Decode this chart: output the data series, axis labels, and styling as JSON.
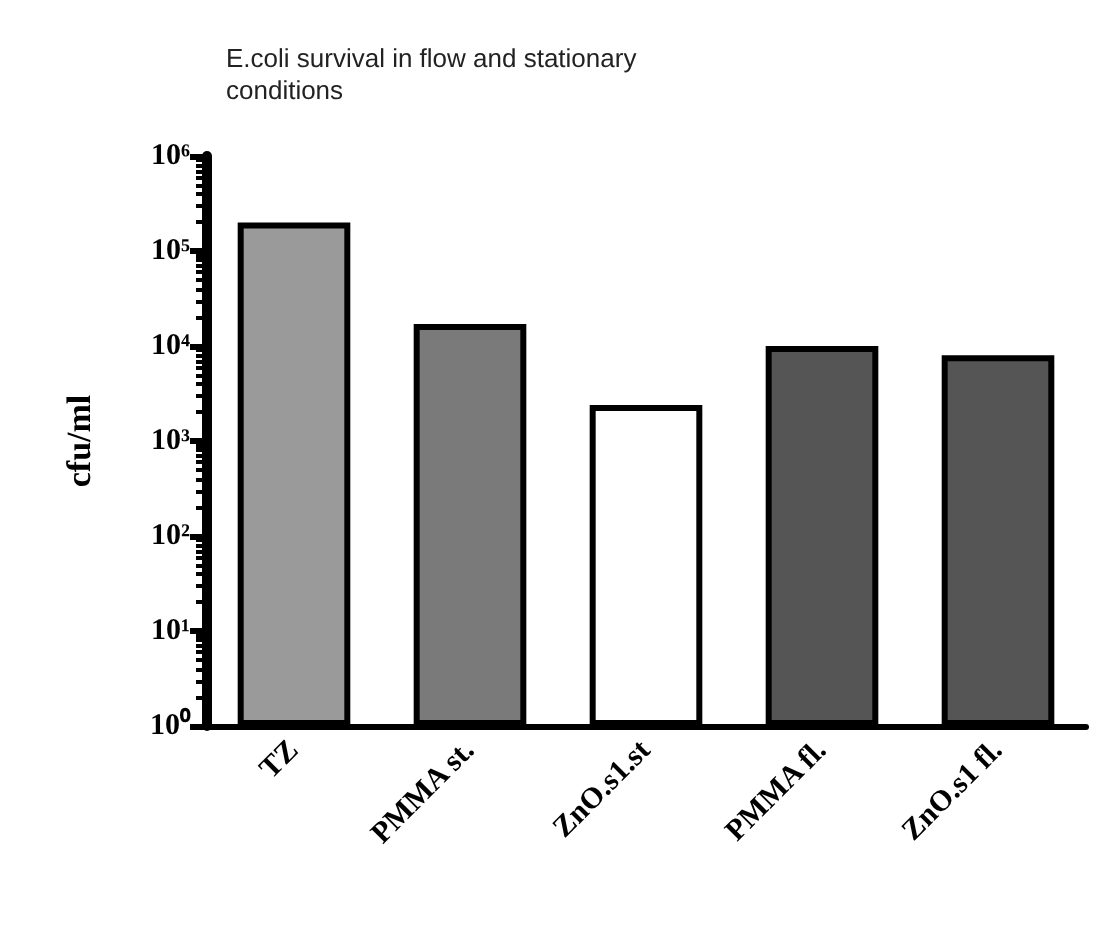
{
  "chart_data": {
    "type": "bar",
    "title": "E.coli survival in flow and stationary\nconditions",
    "ylabel": "cfu/ml",
    "categories": [
      "TZ",
      "PMMA st.",
      "ZnO.s1.st",
      "PMMA fl.",
      "ZnO.s1 fl."
    ],
    "values": [
      200000,
      17000,
      2400,
      10000,
      8000
    ],
    "colors": [
      "#9a9a9a",
      "#7a7a7a",
      "#ffffff",
      "#555555",
      "#555555"
    ],
    "log": true,
    "ylim": [
      1,
      1000000
    ],
    "yticks": [
      {
        "value": 1,
        "label": "10⁰"
      },
      {
        "value": 10,
        "label": "10¹"
      },
      {
        "value": 100,
        "label": "10²"
      },
      {
        "value": 1000,
        "label": "10³"
      },
      {
        "value": 10000,
        "label": "10⁴"
      },
      {
        "value": 100000,
        "label": "10⁵"
      },
      {
        "value": 1000000,
        "label": "10⁶"
      }
    ],
    "grid": false
  }
}
